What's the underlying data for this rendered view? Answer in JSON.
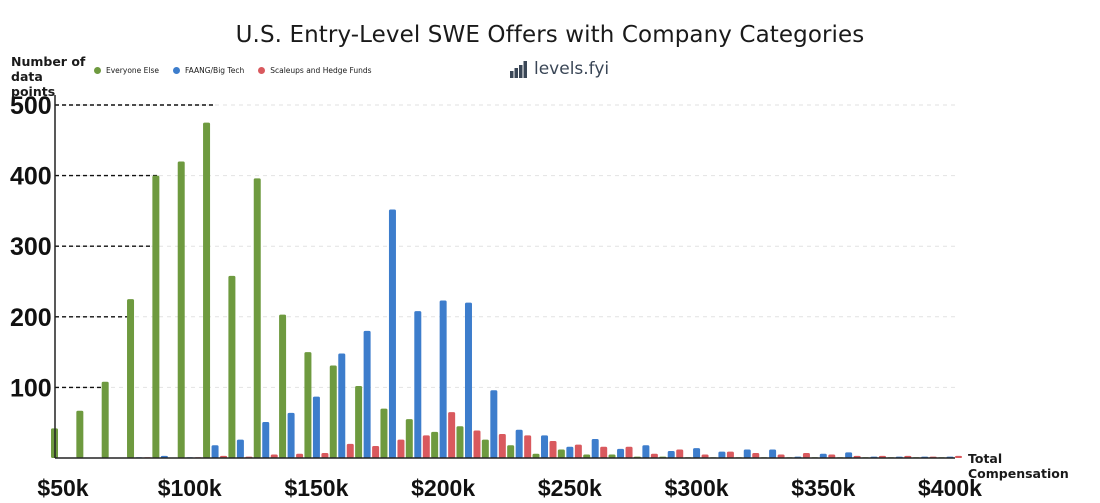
{
  "brand": {
    "name": "levels.fyi",
    "icon": "stairs-bars-icon"
  },
  "chart_data": {
    "type": "bar",
    "title": "U.S. Entry-Level SWE Offers with Company Categories",
    "ylabel": "Number of data points",
    "ylabel_lines": [
      "Number of",
      "data points"
    ],
    "xlabel": "Total Compensation",
    "ylim": [
      0,
      500
    ],
    "yticks": [
      100,
      200,
      300,
      400,
      500
    ],
    "ytick_labels": [
      "100",
      "200",
      "300",
      "400",
      "500"
    ],
    "xticks": [
      50,
      100,
      150,
      200,
      250,
      300,
      350,
      400
    ],
    "xtick_labels": [
      "$50k",
      "$100k",
      "$150k",
      "$200k",
      "$250k",
      "$300k",
      "$350k",
      "$400k"
    ],
    "grid": true,
    "legend_position": "top-left",
    "x": [
      50,
      60,
      70,
      80,
      90,
      100,
      110,
      120,
      130,
      140,
      150,
      160,
      170,
      180,
      190,
      200,
      210,
      220,
      230,
      240,
      250,
      260,
      270,
      280,
      290,
      300,
      310,
      320,
      330,
      340,
      350,
      360,
      370,
      380,
      390,
      400
    ],
    "series": [
      {
        "name": "Everyone Else",
        "color": "#6e9a3f",
        "values": [
          42,
          67,
          108,
          225,
          400,
          420,
          475,
          258,
          396,
          203,
          150,
          131,
          102,
          70,
          55,
          37,
          45,
          26,
          18,
          6,
          12,
          5,
          5,
          2,
          2,
          1,
          1,
          1,
          1,
          1,
          1,
          1,
          1,
          1,
          1,
          1
        ]
      },
      {
        "name": "FAANG/Big Tech",
        "color": "#3d7dcc",
        "values": [
          0,
          0,
          0,
          1,
          3,
          1,
          18,
          26,
          51,
          64,
          87,
          148,
          180,
          352,
          208,
          223,
          220,
          96,
          40,
          32,
          16,
          27,
          13,
          18,
          10,
          14,
          9,
          12,
          12,
          2,
          6,
          8,
          2,
          2,
          2,
          2
        ]
      },
      {
        "name": "Scaleups and Hedge Funds",
        "color": "#d9595e",
        "values": [
          0,
          0,
          0,
          1,
          0,
          1,
          3,
          2,
          5,
          6,
          7,
          20,
          17,
          26,
          32,
          65,
          39,
          34,
          32,
          24,
          19,
          16,
          16,
          6,
          12,
          5,
          9,
          7,
          5,
          7,
          5,
          3,
          3,
          3,
          2,
          3
        ]
      }
    ]
  }
}
